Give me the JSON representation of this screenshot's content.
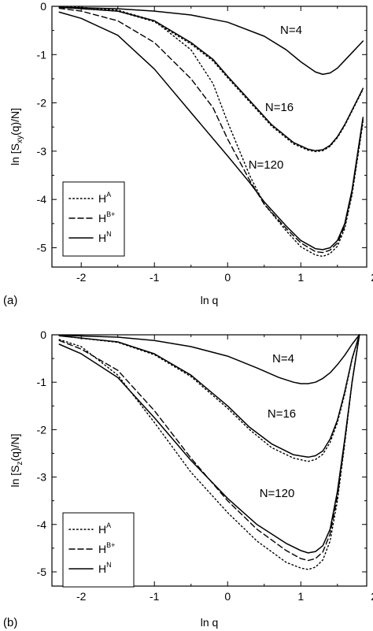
{
  "chart_data": [
    {
      "type": "line",
      "panel_label": "(a)",
      "xlabel": "ln q",
      "ylabel": "ln [S_xy(q)/N]",
      "xlim": [
        -2.4,
        1.9
      ],
      "ylim": [
        -5.4,
        0
      ],
      "xticks": [
        "-2",
        "-1",
        "0",
        "1",
        "2"
      ],
      "yticks": [
        "0",
        "-1",
        "-2",
        "-3",
        "-4",
        "-5"
      ],
      "legend_position": "lower-left",
      "legend": [
        {
          "base": "H",
          "sup": "A",
          "style": "dotted"
        },
        {
          "base": "H",
          "sup": "B+",
          "style": "dashed"
        },
        {
          "base": "H",
          "sup": "N",
          "style": "solid"
        }
      ],
      "annotations": [
        "N=4",
        "N=16",
        "N=120"
      ],
      "series": [
        {
          "group": "N=4",
          "style": "solid",
          "x": [
            -2.3,
            -1.5,
            -1.0,
            -0.5,
            0.0,
            0.5,
            0.8,
            1.0,
            1.2,
            1.3,
            1.4,
            1.5,
            1.6,
            1.7,
            1.8,
            1.85
          ],
          "y": [
            -0.02,
            -0.05,
            -0.1,
            -0.18,
            -0.33,
            -0.62,
            -0.9,
            -1.15,
            -1.36,
            -1.41,
            -1.38,
            -1.28,
            -1.12,
            -0.96,
            -0.8,
            -0.72
          ]
        },
        {
          "group": "N=16",
          "style": "solid",
          "x": [
            -2.3,
            -1.5,
            -1.0,
            -0.5,
            -0.2,
            0.0,
            0.3,
            0.6,
            0.9,
            1.1,
            1.2,
            1.3,
            1.4,
            1.5,
            1.6,
            1.7,
            1.8,
            1.85
          ],
          "y": [
            -0.02,
            -0.1,
            -0.3,
            -0.75,
            -1.1,
            -1.45,
            -1.95,
            -2.45,
            -2.82,
            -2.96,
            -2.99,
            -2.97,
            -2.88,
            -2.7,
            -2.45,
            -2.15,
            -1.85,
            -1.7
          ]
        },
        {
          "group": "N=16",
          "style": "dotted",
          "x": [
            -2.3,
            -1.5,
            -1.0,
            -0.5,
            -0.2,
            0.0,
            0.3,
            0.6,
            0.9,
            1.1,
            1.2,
            1.3,
            1.4,
            1.5,
            1.6,
            1.7,
            1.8,
            1.85
          ],
          "y": [
            -0.02,
            -0.1,
            -0.32,
            -0.78,
            -1.13,
            -1.48,
            -1.98,
            -2.48,
            -2.85,
            -2.98,
            -3.01,
            -2.99,
            -2.9,
            -2.72,
            -2.47,
            -2.17,
            -1.87,
            -1.72
          ]
        },
        {
          "group": "N=120",
          "style": "solid",
          "x": [
            -2.3,
            -2.0,
            -1.5,
            -1.0,
            -0.5,
            0.0,
            0.3,
            0.5,
            0.8,
            1.0,
            1.2,
            1.3,
            1.4,
            1.5,
            1.6,
            1.7,
            1.8,
            1.85
          ],
          "y": [
            -0.12,
            -0.25,
            -0.6,
            -1.3,
            -2.2,
            -3.1,
            -3.65,
            -4.05,
            -4.55,
            -4.85,
            -5.02,
            -5.04,
            -5.0,
            -4.85,
            -4.5,
            -3.8,
            -2.8,
            -2.3
          ]
        },
        {
          "group": "N=120",
          "style": "dashed",
          "x": [
            -2.3,
            -2.0,
            -1.5,
            -1.0,
            -0.5,
            -0.2,
            0.0,
            0.3,
            0.5,
            0.8,
            1.0,
            1.2,
            1.3,
            1.4,
            1.5,
            1.6,
            1.7,
            1.8,
            1.85
          ],
          "y": [
            -0.04,
            -0.1,
            -0.3,
            -0.75,
            -1.5,
            -2.1,
            -2.75,
            -3.6,
            -4.1,
            -4.6,
            -4.9,
            -5.08,
            -5.1,
            -5.05,
            -4.9,
            -4.55,
            -3.85,
            -2.85,
            -2.35
          ]
        },
        {
          "group": "N=120",
          "style": "dotted",
          "x": [
            -2.3,
            -2.0,
            -1.5,
            -1.0,
            -0.5,
            -0.2,
            0.0,
            0.3,
            0.5,
            0.8,
            1.0,
            1.2,
            1.3,
            1.4,
            1.5,
            1.6,
            1.7,
            1.8,
            1.85
          ],
          "y": [
            -0.01,
            -0.02,
            -0.08,
            -0.3,
            -0.9,
            -1.6,
            -2.4,
            -3.5,
            -4.1,
            -4.65,
            -4.98,
            -5.15,
            -5.18,
            -5.12,
            -4.97,
            -4.6,
            -3.9,
            -2.9,
            -2.4
          ]
        }
      ]
    },
    {
      "type": "line",
      "panel_label": "(b)",
      "xlabel": "ln q",
      "ylabel": "ln [S_z(q)/N]",
      "xlim": [
        -2.4,
        1.9
      ],
      "ylim": [
        -5.3,
        0
      ],
      "xticks": [
        "-2",
        "-1",
        "0",
        "1",
        "2"
      ],
      "yticks": [
        "0",
        "-1",
        "-2",
        "-3",
        "-4",
        "-5"
      ],
      "legend_position": "lower-left",
      "legend": [
        {
          "base": "H",
          "sup": "A",
          "style": "dotted"
        },
        {
          "base": "H",
          "sup": "B+",
          "style": "dashed"
        },
        {
          "base": "H",
          "sup": "N",
          "style": "solid"
        }
      ],
      "annotations": [
        "N=4",
        "N=16",
        "N=120"
      ],
      "series": [
        {
          "group": "N=4",
          "style": "solid",
          "x": [
            -2.3,
            -1.5,
            -1.0,
            -0.5,
            0.0,
            0.4,
            0.7,
            0.9,
            1.0,
            1.1,
            1.2,
            1.3,
            1.4,
            1.5,
            1.6,
            1.7,
            1.8
          ],
          "y": [
            -0.01,
            -0.05,
            -0.12,
            -0.25,
            -0.45,
            -0.7,
            -0.9,
            -1.0,
            -1.03,
            -1.03,
            -1.0,
            -0.92,
            -0.8,
            -0.63,
            -0.43,
            -0.2,
            0.0
          ]
        },
        {
          "group": "N=16",
          "style": "solid",
          "x": [
            -2.3,
            -1.5,
            -1.0,
            -0.5,
            0.0,
            0.3,
            0.6,
            0.9,
            1.1,
            1.2,
            1.3,
            1.4,
            1.5,
            1.6,
            1.7,
            1.8
          ],
          "y": [
            -0.02,
            -0.15,
            -0.4,
            -0.85,
            -1.5,
            -1.95,
            -2.3,
            -2.53,
            -2.58,
            -2.55,
            -2.45,
            -2.2,
            -1.8,
            -1.2,
            -0.5,
            0.0
          ]
        },
        {
          "group": "N=16",
          "style": "dotted",
          "x": [
            -2.3,
            -1.5,
            -1.0,
            -0.5,
            0.0,
            0.3,
            0.6,
            0.9,
            1.1,
            1.2,
            1.3,
            1.4,
            1.5,
            1.6,
            1.7,
            1.8
          ],
          "y": [
            -0.02,
            -0.16,
            -0.42,
            -0.88,
            -1.55,
            -2.0,
            -2.38,
            -2.6,
            -2.67,
            -2.63,
            -2.52,
            -2.27,
            -1.85,
            -1.25,
            -0.52,
            0.0
          ]
        },
        {
          "group": "N=120",
          "style": "solid",
          "x": [
            -2.3,
            -2.0,
            -1.5,
            -1.0,
            -0.5,
            0.0,
            0.4,
            0.8,
            1.0,
            1.1,
            1.2,
            1.3,
            1.4,
            1.5,
            1.6,
            1.7,
            1.8
          ],
          "y": [
            -0.2,
            -0.4,
            -0.9,
            -1.75,
            -2.65,
            -3.45,
            -4.0,
            -4.4,
            -4.55,
            -4.6,
            -4.57,
            -4.45,
            -4.1,
            -3.3,
            -2.2,
            -1.0,
            0.0
          ]
        },
        {
          "group": "N=120",
          "style": "dashed",
          "x": [
            -2.3,
            -2.0,
            -1.5,
            -1.0,
            -0.5,
            0.0,
            0.4,
            0.8,
            1.0,
            1.1,
            1.2,
            1.3,
            1.4,
            1.5,
            1.6,
            1.7,
            1.8
          ],
          "y": [
            -0.12,
            -0.3,
            -0.75,
            -1.6,
            -2.6,
            -3.5,
            -4.1,
            -4.55,
            -4.72,
            -4.76,
            -4.72,
            -4.58,
            -4.2,
            -3.4,
            -2.25,
            -1.0,
            0.0
          ]
        },
        {
          "group": "N=120",
          "style": "dotted",
          "x": [
            -2.3,
            -2.0,
            -1.5,
            -1.0,
            -0.5,
            0.0,
            0.4,
            0.8,
            1.0,
            1.1,
            1.2,
            1.3,
            1.4,
            1.5,
            1.6,
            1.7,
            1.8
          ],
          "y": [
            -0.1,
            -0.25,
            -0.85,
            -1.85,
            -2.9,
            -3.75,
            -4.35,
            -4.8,
            -4.92,
            -4.95,
            -4.9,
            -4.75,
            -4.35,
            -3.5,
            -2.3,
            -1.0,
            0.0
          ]
        }
      ]
    }
  ]
}
